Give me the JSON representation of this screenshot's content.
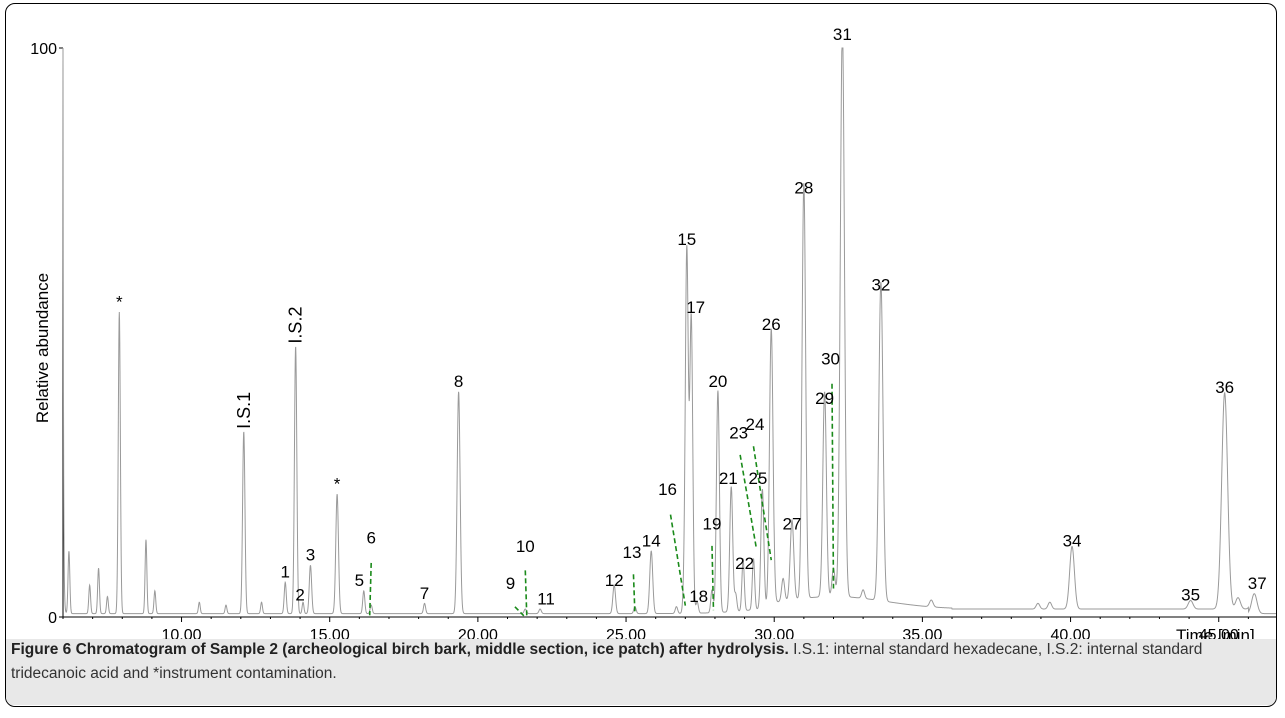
{
  "chart_data": {
    "type": "line",
    "xlabel": "Time [min]",
    "ylabel": "Relative abundance",
    "xlim": [
      6.0,
      47.0
    ],
    "ylim": [
      0,
      100
    ],
    "x_ticks": [
      10,
      15,
      20,
      25,
      30,
      35,
      40,
      45
    ],
    "x_tick_labels": [
      "10.00",
      "15.00",
      "20.00",
      "25.00",
      "30.00",
      "35.00",
      "40.00",
      "45.00"
    ],
    "y_ticks": [
      0,
      100
    ],
    "y_tick_labels": [
      "0",
      "100"
    ],
    "peaks": [
      {
        "rt": 6.2,
        "h": 11,
        "w": 0.03
      },
      {
        "rt": 6.9,
        "h": 5,
        "w": 0.03
      },
      {
        "rt": 7.2,
        "h": 8,
        "w": 0.03
      },
      {
        "rt": 7.5,
        "h": 3,
        "w": 0.03
      },
      {
        "rt": 7.9,
        "h": 53,
        "w": 0.035
      },
      {
        "rt": 8.8,
        "h": 13,
        "w": 0.03
      },
      {
        "rt": 9.1,
        "h": 4,
        "w": 0.03
      },
      {
        "rt": 10.6,
        "h": 2,
        "w": 0.03
      },
      {
        "rt": 11.5,
        "h": 1.5,
        "w": 0.03
      },
      {
        "rt": 12.1,
        "h": 32,
        "w": 0.04
      },
      {
        "rt": 12.7,
        "h": 2,
        "w": 0.03
      },
      {
        "rt": 13.5,
        "h": 5.5,
        "w": 0.035
      },
      {
        "rt": 13.85,
        "h": 47,
        "w": 0.04
      },
      {
        "rt": 14.1,
        "h": 2,
        "w": 0.03
      },
      {
        "rt": 14.35,
        "h": 8.5,
        "w": 0.04
      },
      {
        "rt": 15.25,
        "h": 21,
        "w": 0.045
      },
      {
        "rt": 16.15,
        "h": 4,
        "w": 0.035
      },
      {
        "rt": 16.4,
        "h": 1.5,
        "w": 0.035
      },
      {
        "rt": 18.2,
        "h": 1.8,
        "w": 0.035
      },
      {
        "rt": 19.35,
        "h": 39,
        "w": 0.05
      },
      {
        "rt": 21.6,
        "h": 0.8,
        "w": 0.04
      },
      {
        "rt": 22.1,
        "h": 0.8,
        "w": 0.04
      },
      {
        "rt": 24.6,
        "h": 5,
        "w": 0.045
      },
      {
        "rt": 25.3,
        "h": 1.2,
        "w": 0.04
      },
      {
        "rt": 25.85,
        "h": 11,
        "w": 0.05
      },
      {
        "rt": 26.7,
        "h": 1.2,
        "w": 0.04
      },
      {
        "rt": 26.95,
        "h": 2.5,
        "w": 0.04
      },
      {
        "rt": 27.05,
        "h": 64,
        "w": 0.05
      },
      {
        "rt": 27.2,
        "h": 52,
        "w": 0.05
      },
      {
        "rt": 27.4,
        "h": 2,
        "w": 0.04
      },
      {
        "rt": 27.9,
        "h": 4,
        "w": 0.04
      },
      {
        "rt": 28.1,
        "h": 39,
        "w": 0.05
      },
      {
        "rt": 28.55,
        "h": 22,
        "w": 0.05
      },
      {
        "rt": 28.7,
        "h": 3,
        "w": 0.04
      },
      {
        "rt": 28.95,
        "h": 9,
        "w": 0.04
      },
      {
        "rt": 29.3,
        "h": 9,
        "w": 0.04
      },
      {
        "rt": 29.6,
        "h": 21,
        "w": 0.05
      },
      {
        "rt": 29.9,
        "h": 49,
        "w": 0.06
      },
      {
        "rt": 30.3,
        "h": 4,
        "w": 0.05
      },
      {
        "rt": 30.6,
        "h": 14,
        "w": 0.06
      },
      {
        "rt": 31.0,
        "h": 73,
        "w": 0.06
      },
      {
        "rt": 31.7,
        "h": 36,
        "w": 0.06
      },
      {
        "rt": 32.0,
        "h": 5,
        "w": 0.05
      },
      {
        "rt": 32.3,
        "h": 100,
        "w": 0.07
      },
      {
        "rt": 33.0,
        "h": 1.5,
        "w": 0.05
      },
      {
        "rt": 33.6,
        "h": 56,
        "w": 0.07
      },
      {
        "rt": 35.3,
        "h": 1.2,
        "w": 0.06
      },
      {
        "rt": 38.9,
        "h": 1,
        "w": 0.06
      },
      {
        "rt": 39.3,
        "h": 1.2,
        "w": 0.06
      },
      {
        "rt": 40.05,
        "h": 11,
        "w": 0.08
      },
      {
        "rt": 44.05,
        "h": 1.5,
        "w": 0.08
      },
      {
        "rt": 45.2,
        "h": 38,
        "w": 0.1
      },
      {
        "rt": 45.65,
        "h": 2,
        "w": 0.08
      },
      {
        "rt": 46.2,
        "h": 3.5,
        "w": 0.09
      }
    ],
    "peak_labels": [
      {
        "text": "*",
        "x": 7.9,
        "y": 53
      },
      {
        "text": "I.S.1",
        "x": 12.1,
        "y": 32,
        "rotated": true
      },
      {
        "text": "I.S.2",
        "x": 13.85,
        "y": 47,
        "rotated": true
      },
      {
        "text": "1",
        "x": 13.5,
        "y": 5.5
      },
      {
        "text": "2",
        "x": 14.0,
        "y": 1.5
      },
      {
        "text": "3",
        "x": 14.35,
        "y": 8.5
      },
      {
        "text": "*",
        "x": 15.25,
        "y": 21
      },
      {
        "text": "5",
        "x": 16.0,
        "y": 4
      },
      {
        "text": "6",
        "x": 16.4,
        "y": 11.5
      },
      {
        "text": "7",
        "x": 18.2,
        "y": 1.8
      },
      {
        "text": "8",
        "x": 19.35,
        "y": 39
      },
      {
        "text": "9",
        "x": 21.1,
        "y": 3.5
      },
      {
        "text": "10",
        "x": 21.6,
        "y": 10
      },
      {
        "text": "11",
        "x": 22.3,
        "y": 0.8
      },
      {
        "text": "12",
        "x": 24.6,
        "y": 4
      },
      {
        "text": "13",
        "x": 25.2,
        "y": 9
      },
      {
        "text": "14",
        "x": 25.85,
        "y": 11
      },
      {
        "text": "15",
        "x": 27.05,
        "y": 64
      },
      {
        "text": "16",
        "x": 26.4,
        "y": 20
      },
      {
        "text": "17",
        "x": 27.35,
        "y": 52
      },
      {
        "text": "18",
        "x": 27.45,
        "y": 1.2
      },
      {
        "text": "19",
        "x": 27.9,
        "y": 14
      },
      {
        "text": "20",
        "x": 28.1,
        "y": 39
      },
      {
        "text": "21",
        "x": 28.45,
        "y": 22
      },
      {
        "text": "22",
        "x": 29.0,
        "y": 7
      },
      {
        "text": "23",
        "x": 28.8,
        "y": 30
      },
      {
        "text": "24",
        "x": 29.35,
        "y": 31.5
      },
      {
        "text": "25",
        "x": 29.45,
        "y": 22
      },
      {
        "text": "26",
        "x": 29.9,
        "y": 49
      },
      {
        "text": "27",
        "x": 30.6,
        "y": 14
      },
      {
        "text": "28",
        "x": 31.0,
        "y": 73
      },
      {
        "text": "29",
        "x": 31.7,
        "y": 36
      },
      {
        "text": "30",
        "x": 31.9,
        "y": 43
      },
      {
        "text": "31",
        "x": 32.3,
        "y": 100
      },
      {
        "text": "32",
        "x": 33.6,
        "y": 56
      },
      {
        "text": "34",
        "x": 40.05,
        "y": 11
      },
      {
        "text": "35",
        "x": 44.05,
        "y": 1.5
      },
      {
        "text": "36",
        "x": 45.2,
        "y": 38
      },
      {
        "text": "37",
        "x": 46.3,
        "y": 3.5
      }
    ],
    "leader_lines": [
      [
        16.4,
        9.5,
        16.35,
        0.3
      ],
      [
        21.25,
        1.8,
        21.55,
        0.2
      ],
      [
        21.6,
        8.2,
        21.65,
        0.2
      ],
      [
        25.25,
        7.5,
        25.3,
        0.5
      ],
      [
        26.5,
        18,
        27.0,
        2.0
      ],
      [
        27.9,
        12.5,
        27.95,
        1.2
      ],
      [
        28.85,
        28.5,
        29.4,
        12
      ],
      [
        29.3,
        30,
        29.9,
        10
      ],
      [
        31.95,
        41,
        32.0,
        5
      ]
    ],
    "line_color": "#9a9a9a",
    "leader_color": "#1a8a1a"
  },
  "caption": {
    "bold": "Figure 6 Chromatogram of Sample 2 (archeological birch bark, middle section, ice patch) after hydrolysis.",
    "text": " I.S.1: internal standard hexadecane, I.S.2: internal standard tridecanoic acid and *instrument contamination."
  }
}
